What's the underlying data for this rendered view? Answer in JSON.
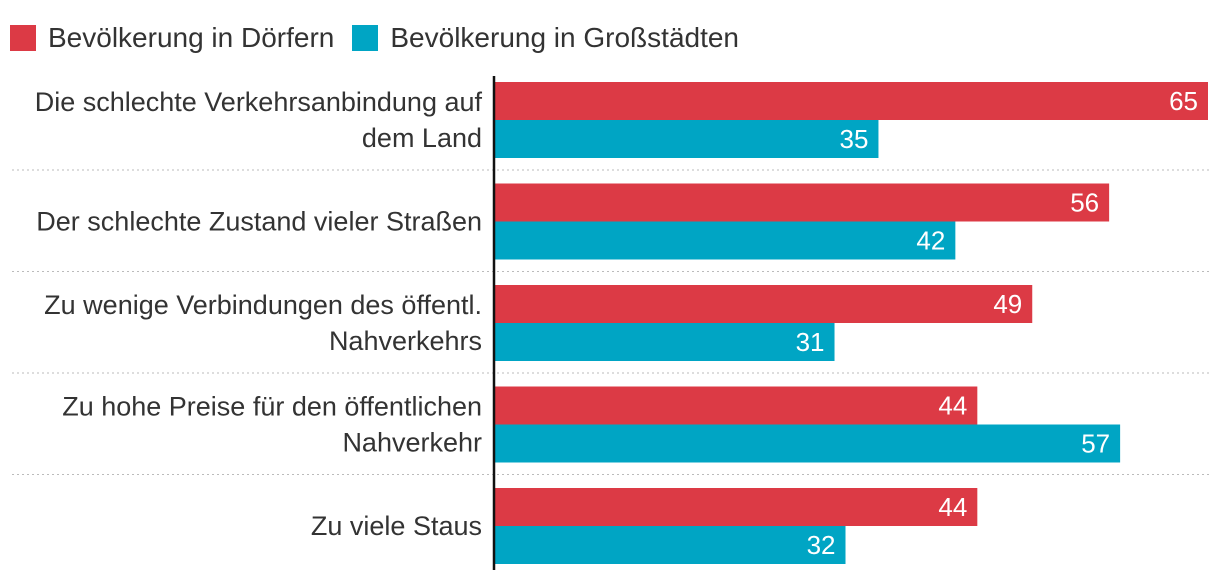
{
  "chart_data": {
    "type": "bar",
    "orientation": "horizontal",
    "categories": [
      [
        "Die schlechte Verkehrsanbindung auf",
        "dem Land"
      ],
      [
        "Der schlechte Zustand vieler Straßen"
      ],
      [
        "Zu wenige Verbindungen des öffentl.",
        "Nahverkehrs"
      ],
      [
        "Zu hohe Preise für den öffentlichen",
        "Nahverkehr"
      ],
      [
        "Zu viele Staus"
      ]
    ],
    "series": [
      {
        "name": "Bevölkerung in Dörfern",
        "color": "#dc3a45",
        "values": [
          65,
          56,
          49,
          44,
          44
        ]
      },
      {
        "name": "Bevölkerung in Großstädten",
        "color": "#00a5c4",
        "values": [
          35,
          42,
          31,
          57,
          32
        ]
      }
    ],
    "xlim": [
      0,
      65
    ],
    "legend_position": "top-left",
    "grid": false
  }
}
